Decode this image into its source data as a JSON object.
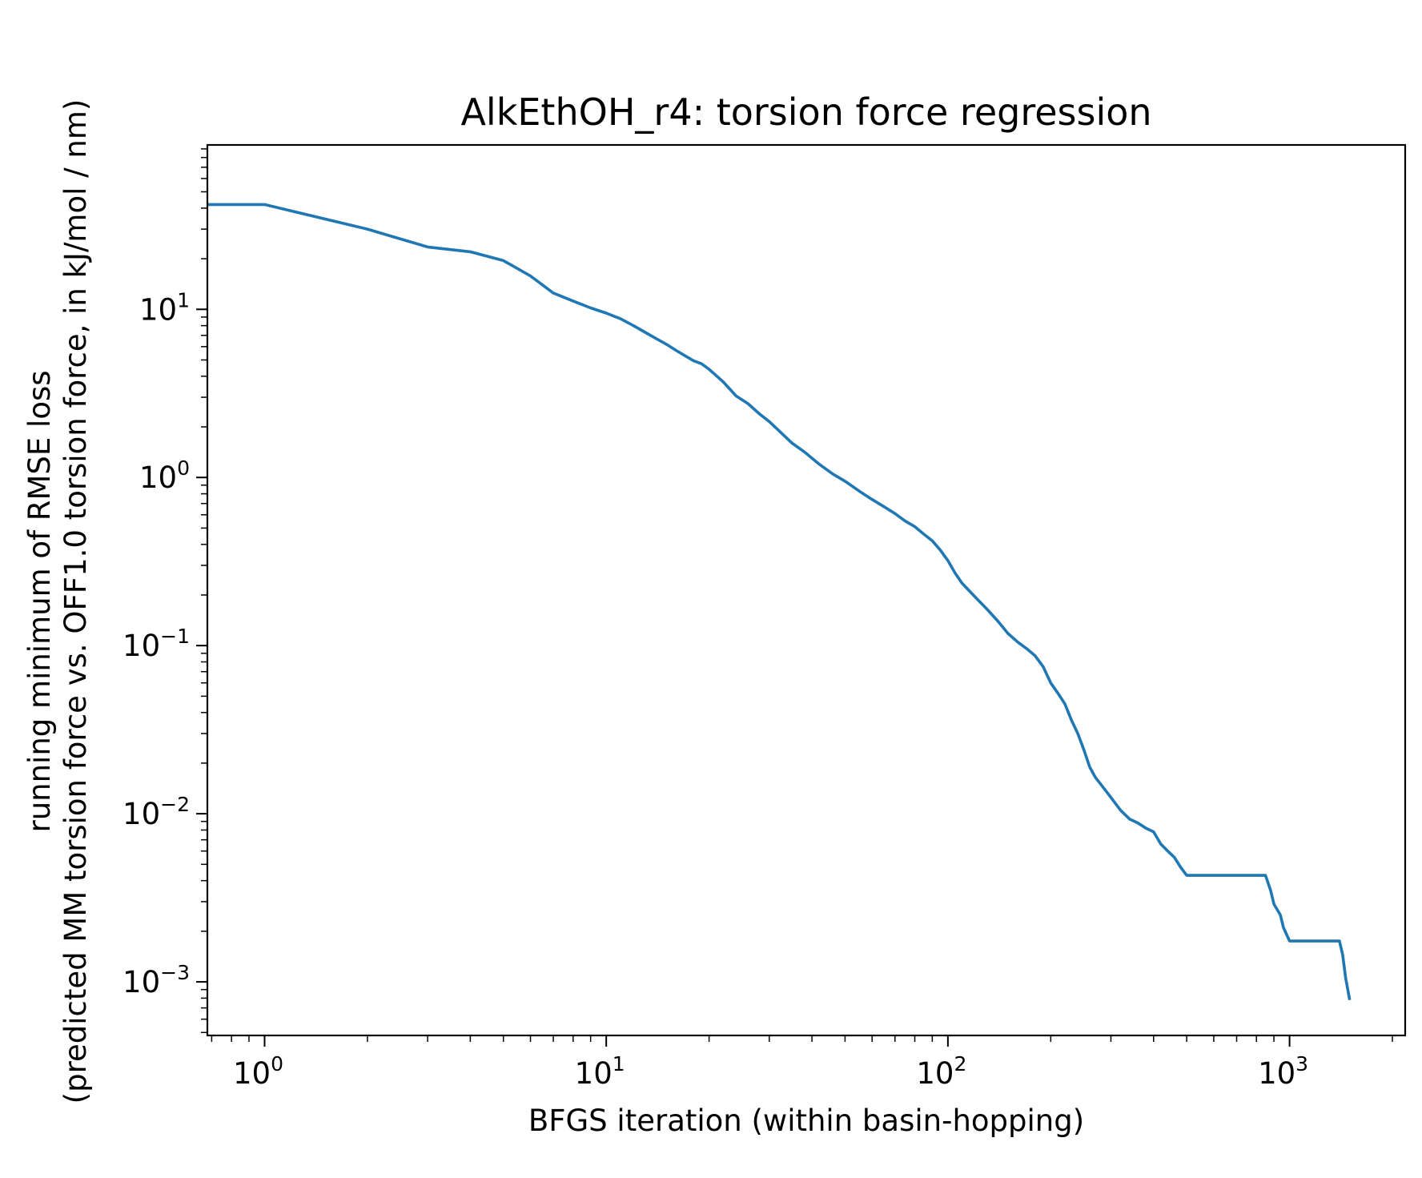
{
  "chart_data": {
    "type": "line",
    "title": "AlkEthOH_r4: torsion force regression",
    "xlabel": "BFGS iteration (within basin-hopping)",
    "ylabel_line1": "running minimum of RMSE loss",
    "ylabel_line2": "(predicted MM torsion force vs. OFF1.0 torsion force, in kJ/mol / nm)",
    "xscale": "log",
    "yscale": "log",
    "xlim": [
      0.68,
      2180
    ],
    "ylim": [
      0.00048,
      95
    ],
    "grid": false,
    "legend": "none",
    "x_ticks": [
      {
        "base": "10",
        "exp": "0"
      },
      {
        "base": "10",
        "exp": "1"
      },
      {
        "base": "10",
        "exp": "2"
      },
      {
        "base": "10",
        "exp": "3"
      }
    ],
    "y_ticks": [
      {
        "base": "10",
        "exp": "1"
      },
      {
        "base": "10",
        "exp": "0"
      },
      {
        "base": "10",
        "exp": "−1"
      },
      {
        "base": "10",
        "exp": "−2"
      },
      {
        "base": "10",
        "exp": "−3"
      }
    ],
    "line_color": "#1f77b4",
    "series": [
      {
        "x": [
          0.68,
          1,
          2,
          3,
          4,
          5,
          6,
          7,
          8,
          9,
          10,
          11,
          12,
          13,
          14,
          15,
          16,
          17,
          18,
          19,
          20,
          22,
          24,
          26,
          28,
          30,
          32,
          35,
          38,
          42,
          46,
          50,
          55,
          60,
          65,
          70,
          75,
          80,
          85,
          90,
          95,
          100,
          105,
          110,
          120,
          130,
          140,
          150,
          160,
          170,
          180,
          190,
          200,
          210,
          220,
          230,
          240,
          250,
          260,
          270,
          280,
          300,
          320,
          340,
          360,
          380,
          400,
          420,
          440,
          460,
          480,
          500,
          550,
          600,
          700,
          800,
          850,
          880,
          900,
          940,
          960,
          1000,
          1100,
          1200,
          1300,
          1400,
          1430,
          1460,
          1500
        ],
        "y": [
          42,
          42,
          30,
          23.5,
          22,
          19.5,
          15.8,
          12.5,
          11.2,
          10.2,
          9.5,
          8.8,
          8.0,
          7.3,
          6.7,
          6.2,
          5.7,
          5.3,
          4.95,
          4.75,
          4.4,
          3.7,
          3.05,
          2.75,
          2.4,
          2.15,
          1.9,
          1.6,
          1.42,
          1.2,
          1.05,
          0.95,
          0.83,
          0.74,
          0.67,
          0.61,
          0.55,
          0.51,
          0.46,
          0.42,
          0.37,
          0.32,
          0.27,
          0.235,
          0.195,
          0.165,
          0.14,
          0.118,
          0.105,
          0.096,
          0.087,
          0.075,
          0.06,
          0.052,
          0.045,
          0.036,
          0.03,
          0.024,
          0.019,
          0.0165,
          0.015,
          0.0125,
          0.0105,
          0.0093,
          0.0088,
          0.0082,
          0.0078,
          0.0066,
          0.006,
          0.0055,
          0.0048,
          0.0043,
          0.0043,
          0.0043,
          0.0043,
          0.0043,
          0.0043,
          0.0035,
          0.0029,
          0.0025,
          0.0021,
          0.00175,
          0.00175,
          0.00175,
          0.00175,
          0.00175,
          0.00145,
          0.00105,
          0.00078
        ]
      }
    ]
  }
}
